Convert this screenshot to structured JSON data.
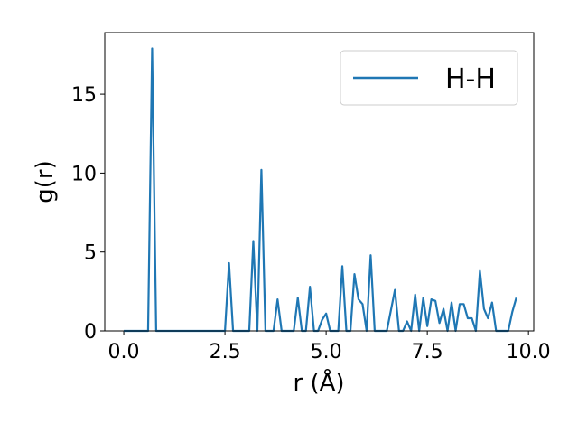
{
  "chart_data": {
    "type": "line",
    "x_label": "r (Å)",
    "y_label": "g(r)",
    "x": [
      0.0,
      0.1,
      0.2,
      0.3,
      0.4,
      0.5,
      0.6,
      0.7,
      0.8,
      0.9,
      1.0,
      1.1,
      1.2,
      1.3,
      1.4,
      1.5,
      1.6,
      1.7,
      1.8,
      1.9,
      2.0,
      2.1,
      2.2,
      2.3,
      2.4,
      2.5,
      2.6,
      2.7,
      2.8,
      2.9,
      3.0,
      3.1,
      3.2,
      3.3,
      3.4,
      3.5,
      3.6,
      3.7,
      3.8,
      3.9,
      4.0,
      4.1,
      4.2,
      4.3,
      4.4,
      4.5,
      4.6,
      4.7,
      4.8,
      4.9,
      5.0,
      5.1,
      5.2,
      5.3,
      5.4,
      5.5,
      5.6,
      5.7,
      5.8,
      5.9,
      6.0,
      6.1,
      6.2,
      6.3,
      6.4,
      6.5,
      6.6,
      6.7,
      6.8,
      6.9,
      7.0,
      7.1,
      7.2,
      7.3,
      7.4,
      7.5,
      7.6,
      7.7,
      7.8,
      7.9,
      8.0,
      8.1,
      8.2,
      8.3,
      8.4,
      8.5,
      8.6,
      8.7,
      8.8,
      8.9,
      9.0,
      9.1,
      9.2,
      9.3,
      9.4,
      9.5,
      9.6,
      9.7
    ],
    "series": [
      {
        "name": "H-H",
        "color": "#1f77b4",
        "values": [
          0,
          0,
          0,
          0,
          0,
          0,
          0,
          17.9,
          0,
          0,
          0,
          0,
          0,
          0,
          0,
          0,
          0,
          0,
          0,
          0,
          0,
          0,
          0,
          0,
          0,
          0,
          4.3,
          0,
          0,
          0,
          0,
          0,
          5.7,
          0,
          10.2,
          0,
          0,
          0,
          2.0,
          0,
          0,
          0,
          0,
          2.1,
          0,
          0,
          2.8,
          0,
          0,
          0.7,
          1.1,
          0,
          0,
          0,
          4.1,
          0,
          0,
          3.6,
          2.0,
          1.7,
          0,
          4.8,
          0,
          0,
          0,
          0,
          1.3,
          2.6,
          0,
          0,
          0.6,
          0,
          2.3,
          0,
          2.1,
          0.3,
          2.0,
          1.9,
          0.5,
          1.4,
          0,
          1.8,
          0,
          1.7,
          1.7,
          0.8,
          0.8,
          0,
          3.8,
          1.4,
          0.8,
          1.8,
          0,
          0,
          0,
          0,
          1.2,
          2.1
        ]
      }
    ],
    "xlim": [
      -0.47,
      10.13
    ],
    "ylim": [
      0,
      18.9
    ],
    "xticks": [
      {
        "value": 0,
        "label": "0.0"
      },
      2.5,
      {
        "value": 5,
        "label": "5.0"
      },
      7.5,
      {
        "value": 10,
        "label": "10.0"
      }
    ],
    "yticks": [
      0,
      5,
      10,
      15
    ],
    "legend": "upper right"
  }
}
